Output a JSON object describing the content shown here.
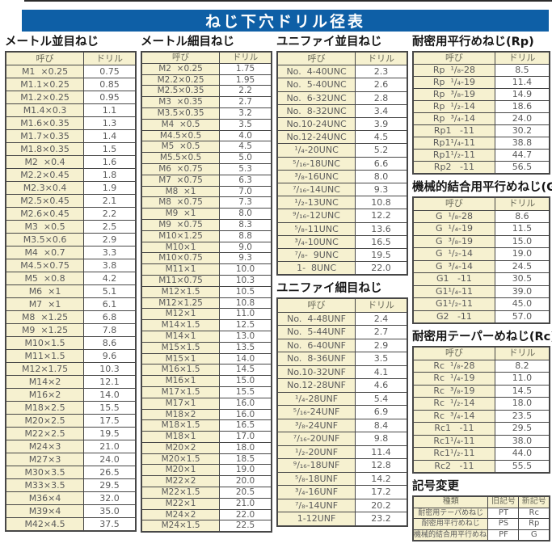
{
  "title": "ねじ下穴ドリル径表",
  "colors": {
    "title_bar_blue": "#0e5fa6",
    "title_text": "#ffffff",
    "cell_cream": "#f6f1d0",
    "cell_white": "#ffffff",
    "border_dark": "#474747",
    "table_text": "#5a5a5a"
  },
  "sections": [
    {
      "heading": "メートル並目ねじ",
      "headers": [
        "呼び",
        "ドリル"
      ],
      "rows": [
        [
          "M1  ×0.25",
          "0.75"
        ],
        [
          "M1.1×0.25",
          "0.85"
        ],
        [
          "M1.2×0.25",
          "0.95"
        ],
        [
          "M1.4×0.3",
          "1.1"
        ],
        [
          "M1.6×0.35",
          "1.3"
        ],
        [
          "M1.7×0.35",
          "1.4"
        ],
        [
          "M1.8×0.35",
          "1.5"
        ],
        [
          "M2  ×0.4",
          "1.6"
        ],
        [
          "M2.2×0.45",
          "1.8"
        ],
        [
          "M2.3×0.4",
          "1.9"
        ],
        [
          "M2.5×0.45",
          "2.1"
        ],
        [
          "M2.6×0.45",
          "2.2"
        ],
        [
          "M3  ×0.5",
          "2.5"
        ],
        [
          "M3.5×0.6",
          "2.9"
        ],
        [
          "M4  ×0.7",
          "3.3"
        ],
        [
          "M4.5×0.75",
          "3.8"
        ],
        [
          "M5  ×0.8",
          "4.2"
        ],
        [
          "M6  ×1",
          "5.1"
        ],
        [
          "M7  ×1",
          "6.1"
        ],
        [
          "M8  ×1.25",
          "6.8"
        ],
        [
          "M9  ×1.25",
          "7.8"
        ],
        [
          "M10×1.5",
          "8.6"
        ],
        [
          "M11×1.5",
          "9.6"
        ],
        [
          "M12×1.75",
          "10.3"
        ],
        [
          "M14×2",
          "12.1"
        ],
        [
          "M16×2",
          "14.0"
        ],
        [
          "M18×2.5",
          "15.5"
        ],
        [
          "M20×2.5",
          "17.5"
        ],
        [
          "M22×2.5",
          "19.5"
        ],
        [
          "M24×3",
          "21.0"
        ],
        [
          "M27×3",
          "24.0"
        ],
        [
          "M30×3.5",
          "26.5"
        ],
        [
          "M33×3.5",
          "29.5"
        ],
        [
          "M36×4",
          "32.0"
        ],
        [
          "M39×4",
          "35.0"
        ],
        [
          "M42×4.5",
          "37.5"
        ]
      ]
    },
    {
      "heading": "メートル細目ねじ",
      "headers": [
        "呼び",
        "ドリル"
      ],
      "rows": [
        [
          "M2  ×0.25",
          "1.75"
        ],
        [
          "M2.2×0.25",
          "1.95"
        ],
        [
          "M2.5×0.35",
          "2.2"
        ],
        [
          "M3  ×0.35",
          "2.7"
        ],
        [
          "M3.5×0.35",
          "3.2"
        ],
        [
          "M4  ×0.5",
          "3.5"
        ],
        [
          "M4.5×0.5",
          "4.0"
        ],
        [
          "M5  ×0.5",
          "4.5"
        ],
        [
          "M5.5×0.5",
          "5.0"
        ],
        [
          "M6  ×0.75",
          "5.3"
        ],
        [
          "M7  ×0.75",
          "6.3"
        ],
        [
          "M8  ×1",
          "7.0"
        ],
        [
          "M8  ×0.75",
          "7.3"
        ],
        [
          "M9  ×1",
          "8.0"
        ],
        [
          "M9  ×0.75",
          "8.3"
        ],
        [
          "M10×1.25",
          "8.8"
        ],
        [
          "M10×1",
          "9.0"
        ],
        [
          "M10×0.75",
          "9.3"
        ],
        [
          "M11×1",
          "10.0"
        ],
        [
          "M11×0.75",
          "10.3"
        ],
        [
          "M12×1.5",
          "10.5"
        ],
        [
          "M12×1.25",
          "10.8"
        ],
        [
          "M12×1",
          "11.0"
        ],
        [
          "M14×1.5",
          "12.5"
        ],
        [
          "M14×1",
          "13.0"
        ],
        [
          "M15×1.5",
          "13.5"
        ],
        [
          "M15×1",
          "14.0"
        ],
        [
          "M16×1.5",
          "14.5"
        ],
        [
          "M16×1",
          "15.0"
        ],
        [
          "M17×1.5",
          "15.5"
        ],
        [
          "M17×1",
          "16.0"
        ],
        [
          "M18×2",
          "16.0"
        ],
        [
          "M18×1.5",
          "16.5"
        ],
        [
          "M18×1",
          "17.0"
        ],
        [
          "M20×2",
          "18.0"
        ],
        [
          "M20×1.5",
          "18.5"
        ],
        [
          "M20×1",
          "19.0"
        ],
        [
          "M22×2",
          "20.0"
        ],
        [
          "M22×1.5",
          "20.5"
        ],
        [
          "M22×1",
          "21.0"
        ],
        [
          "M24×2",
          "22.0"
        ],
        [
          "M24×1.5",
          "22.5"
        ]
      ]
    },
    {
      "heading": "ユニファイ並目ねじ",
      "headers": [
        "呼び",
        "ドリル"
      ],
      "rows": [
        [
          "No.  4-40UNC",
          "2.3"
        ],
        [
          "No.  5-40UNC",
          "2.6"
        ],
        [
          "No.  6-32UNC",
          "2.8"
        ],
        [
          "No.  8-32UNC",
          "3.4"
        ],
        [
          "No.10-24UNC",
          "3.9"
        ],
        [
          "No.12-24UNC",
          "4.5"
        ],
        [
          "¹/₄-20UNC",
          "5.2"
        ],
        [
          "⁵/₁₆-18UNC",
          "6.6"
        ],
        [
          "³/₈-16UNC",
          "8.0"
        ],
        [
          "⁷/₁₆-14UNC",
          "9.3"
        ],
        [
          "¹/₂-13UNC",
          "10.8"
        ],
        [
          "⁹/₁₆-12UNC",
          "12.2"
        ],
        [
          "⁵/₈-11UNC",
          "13.6"
        ],
        [
          "³/₄-10UNC",
          "16.5"
        ],
        [
          "⁷/₈-  9UNC",
          "19.5"
        ],
        [
          "1-  8UNC",
          "22.0"
        ]
      ]
    },
    {
      "heading": "ユニファイ細目ねじ",
      "headers": [
        "呼び",
        "ドリル"
      ],
      "rows": [
        [
          "No.  4-48UNF",
          "2.4"
        ],
        [
          "No.  5-44UNF",
          "2.7"
        ],
        [
          "No.  6-40UNF",
          "2.9"
        ],
        [
          "No.  8-36UNF",
          "3.5"
        ],
        [
          "No.10-32UNF",
          "4.1"
        ],
        [
          "No.12-28UNF",
          "4.6"
        ],
        [
          "¹/₄-28UNF",
          "5.4"
        ],
        [
          "⁵/₁₆-24UNF",
          "6.9"
        ],
        [
          "³/₈-24UNF",
          "8.4"
        ],
        [
          "⁷/₁₆-20UNF",
          "9.8"
        ],
        [
          "¹/₂-20UNF",
          "11.4"
        ],
        [
          "⁹/₁₆-18UNF",
          "12.8"
        ],
        [
          "⁵/₈-18UNF",
          "14.2"
        ],
        [
          "³/₄-16UNF",
          "17.2"
        ],
        [
          "⁷/₈-14UNF",
          "20.2"
        ],
        [
          "1-12UNF",
          "23.2"
        ]
      ]
    },
    {
      "heading": "耐密用平行めねじ(Rp)",
      "headers": [
        "呼び",
        "ドリル"
      ],
      "rows": [
        [
          "Rp  ¹/₈-28",
          "8.5"
        ],
        [
          "Rp  ¹/₄-19",
          "11.4"
        ],
        [
          "Rp  ³/₈-19",
          "14.9"
        ],
        [
          "Rp  ¹/₂-14",
          "18.6"
        ],
        [
          "Rp  ³/₄-14",
          "24.0"
        ],
        [
          "Rp1   -11",
          "30.2"
        ],
        [
          "Rp1¹/₄-11",
          "38.8"
        ],
        [
          "Rp1¹/₂-11",
          "44.7"
        ],
        [
          "Rp2   -11",
          "56.5"
        ]
      ]
    },
    {
      "heading": "機械的結合用平行めねじ(G)",
      "headers": [
        "呼び",
        "ドリル"
      ],
      "rows": [
        [
          "G  ¹/₈-28",
          "8.6"
        ],
        [
          "G  ¹/₄-19",
          "11.5"
        ],
        [
          "G  ³/₈-19",
          "15.0"
        ],
        [
          "G  ¹/₂-14",
          "19.0"
        ],
        [
          "G  ³/₄-14",
          "24.5"
        ],
        [
          "G1   -11",
          "30.5"
        ],
        [
          "G1¹/₄-11",
          "39.0"
        ],
        [
          "G1¹/₂-11",
          "45.0"
        ],
        [
          "G2   -11",
          "57.0"
        ]
      ]
    },
    {
      "heading": "耐密用テーパーめねじ(Rc)",
      "headers": [
        "呼び",
        "ドリル"
      ],
      "rows": [
        [
          "Rc  ¹/₈-28",
          "8.2"
        ],
        [
          "Rc  ¹/₄-19",
          "11.0"
        ],
        [
          "Rc  ³/₈-19",
          "14.5"
        ],
        [
          "Rc  ¹/₂-14",
          "18.0"
        ],
        [
          "Rc  ³/₄-14",
          "23.5"
        ],
        [
          "Rc1   -11",
          "29.5"
        ],
        [
          "Rc1¹/₄-11",
          "38.0"
        ],
        [
          "Rc1¹/₂-11",
          "44.0"
        ],
        [
          "Rc2   -11",
          "55.5"
        ]
      ]
    },
    {
      "heading": "記号変更",
      "headers": [
        "種類",
        "旧記号",
        "新記号"
      ],
      "rows": [
        [
          "耐密用テーパめねじ",
          "PT",
          "Rc"
        ],
        [
          "耐密用平行めねじ",
          "PS",
          "Rp"
        ],
        [
          "機械的結合用平行めねじ",
          "PF",
          "G"
        ]
      ]
    }
  ]
}
